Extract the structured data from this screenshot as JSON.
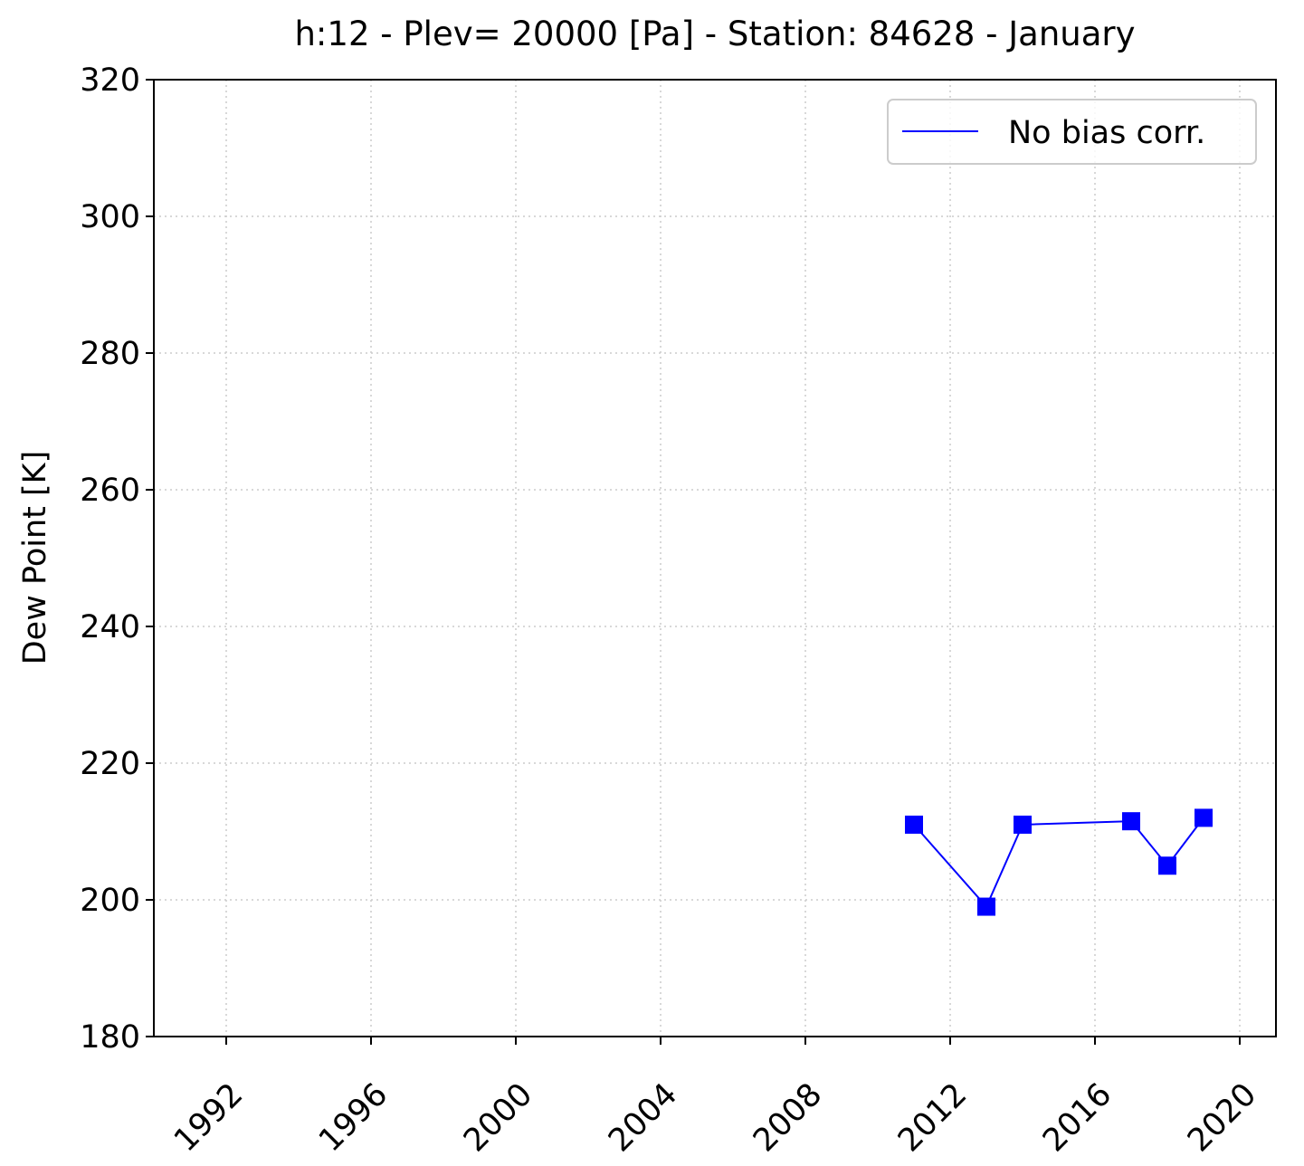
{
  "chart_data": {
    "type": "line",
    "title": "h:12 - Plev= 20000 [Pa] - Station: 84628 - January",
    "xlabel": "",
    "ylabel": "Dew Point [K]",
    "xlim": [
      1990,
      2021
    ],
    "ylim": [
      180,
      320
    ],
    "x_ticks": [
      1992,
      1996,
      2000,
      2004,
      2008,
      2012,
      2016,
      2020
    ],
    "y_ticks": [
      180,
      200,
      220,
      240,
      260,
      280,
      300,
      320
    ],
    "grid": true,
    "legend_position": "top-right",
    "series": [
      {
        "name": "No bias corr.",
        "color": "#0000ff",
        "marker": "square",
        "x": [
          2011,
          2013,
          2014,
          2017,
          2018,
          2019
        ],
        "y": [
          211.0,
          199.0,
          211.0,
          211.5,
          205.0,
          212.0
        ]
      }
    ]
  }
}
